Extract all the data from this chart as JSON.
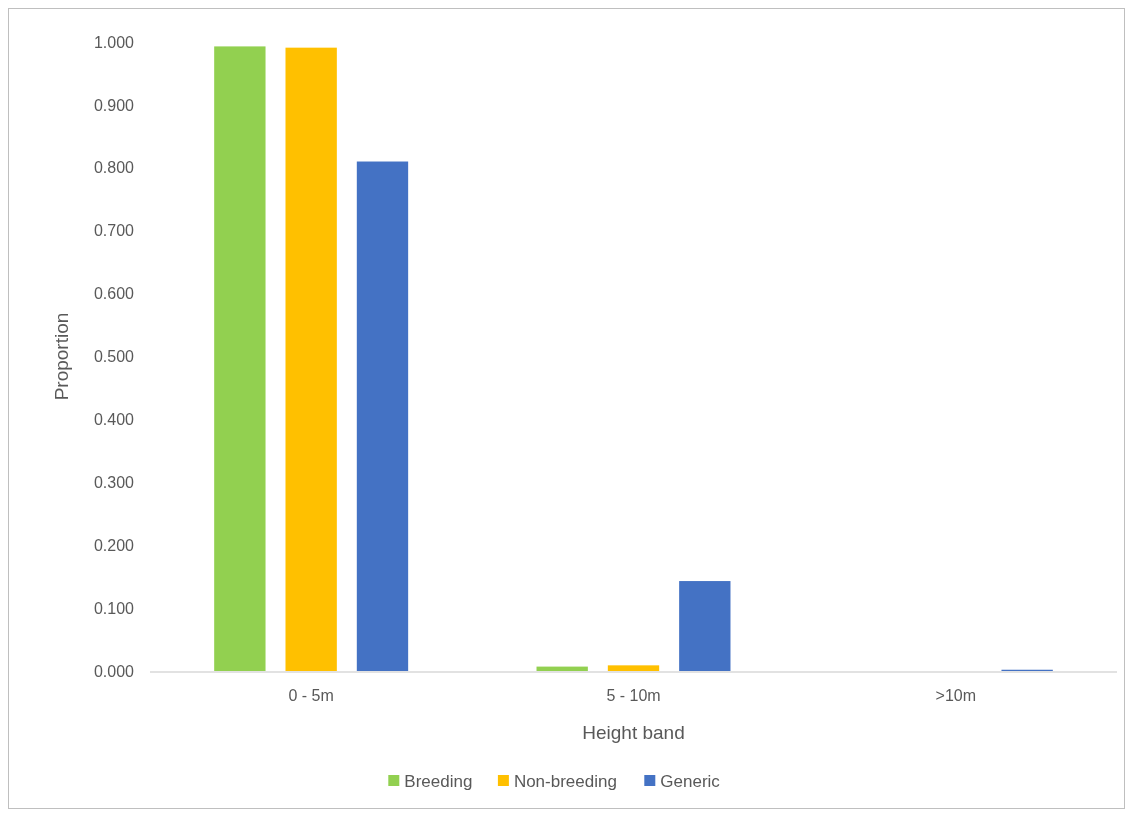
{
  "chart_data": {
    "type": "bar",
    "xlabel": "Height band",
    "ylabel": "Proportion",
    "categories": [
      "0 - 5m",
      "5 - 10m",
      ">10m"
    ],
    "series": [
      {
        "name": "Breeding",
        "color": "#92d050",
        "values": [
          0.993,
          0.007,
          0
        ]
      },
      {
        "name": "Non-breeding",
        "color": "#ffc000",
        "values": [
          0.991,
          0.009,
          0
        ]
      },
      {
        "name": "Generic",
        "color": "#4472c4",
        "values": [
          0.81,
          0.143,
          0.002
        ]
      }
    ],
    "ylim": [
      0,
      1
    ],
    "yticks": [
      {
        "value": 0,
        "label": "0.000"
      },
      {
        "value": 0.1,
        "label": "0.100"
      },
      {
        "value": 0.2,
        "label": "0.200"
      },
      {
        "value": 0.3,
        "label": "0.300"
      },
      {
        "value": 0.4,
        "label": "0.400"
      },
      {
        "value": 0.5,
        "label": "0.500"
      },
      {
        "value": 0.6,
        "label": "0.600"
      },
      {
        "value": 0.7,
        "label": "0.700"
      },
      {
        "value": 0.8,
        "label": "0.800"
      },
      {
        "value": 0.9,
        "label": "0.900"
      },
      {
        "value": 1,
        "label": "1.000"
      }
    ],
    "grid": false,
    "legend": "bottom"
  }
}
